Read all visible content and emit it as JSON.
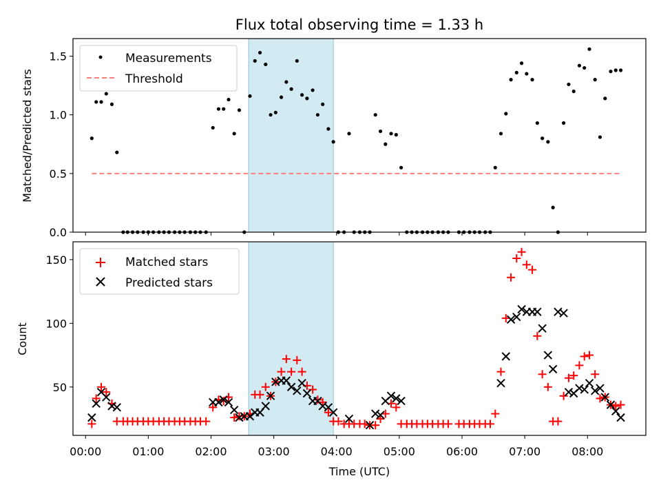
{
  "chart_data": [
    {
      "type": "scatter",
      "title": "Flux total observing time = 1.33 h",
      "xlabel": "",
      "ylabel": "Matched/Predicted stars",
      "xlim": [
        -0.2,
        8.93
      ],
      "ylim": [
        0,
        1.65
      ],
      "yticks": [
        0.0,
        0.5,
        1.0,
        1.5
      ],
      "ytick_labels": [
        "0.0",
        "0.5",
        "1.0",
        "1.5"
      ],
      "legend_position": "top-left",
      "highlight_span": {
        "x": [
          2.6,
          3.95
        ],
        "color": "#add8e6"
      },
      "series": [
        {
          "name": "Measurements",
          "marker": "dot",
          "color": "#000000",
          "x": [
            0.1,
            0.17,
            0.25,
            0.33,
            0.42,
            0.5,
            0.6,
            0.67,
            0.75,
            0.83,
            0.92,
            1.0,
            1.08,
            1.17,
            1.25,
            1.33,
            1.42,
            1.5,
            1.58,
            1.67,
            1.75,
            1.83,
            1.92,
            2.03,
            2.12,
            2.2,
            2.28,
            2.37,
            2.45,
            2.53,
            2.62,
            2.7,
            2.78,
            2.87,
            2.95,
            3.03,
            3.12,
            3.2,
            3.28,
            3.37,
            3.45,
            3.53,
            3.62,
            3.7,
            3.78,
            3.87,
            3.95,
            4.03,
            4.12,
            4.2,
            4.28,
            4.37,
            4.45,
            4.53,
            4.62,
            4.7,
            4.78,
            4.87,
            4.95,
            5.03,
            5.12,
            5.2,
            5.28,
            5.37,
            5.45,
            5.53,
            5.62,
            5.7,
            5.78,
            5.95,
            6.03,
            6.12,
            6.2,
            6.28,
            6.37,
            6.45,
            6.53,
            6.62,
            6.7,
            6.78,
            6.87,
            6.95,
            7.03,
            7.12,
            7.2,
            7.28,
            7.37,
            7.45,
            7.53,
            7.62,
            7.7,
            7.78,
            7.87,
            7.95,
            8.03,
            8.12,
            8.2,
            8.28,
            8.37,
            8.45,
            8.53
          ],
          "y": [
            0.8,
            1.11,
            1.11,
            1.18,
            1.09,
            0.68,
            0.0,
            0.0,
            0.0,
            0.0,
            0.0,
            0.0,
            0.0,
            0.0,
            0.0,
            0.0,
            0.0,
            0.0,
            0.0,
            0.0,
            0.0,
            0.0,
            0.0,
            0.89,
            1.05,
            1.05,
            1.13,
            0.84,
            1.04,
            0.0,
            1.16,
            1.46,
            1.53,
            1.43,
            1.0,
            1.02,
            1.15,
            1.28,
            1.22,
            1.46,
            1.17,
            1.14,
            1.21,
            1.0,
            1.09,
            0.88,
            0.77,
            0.0,
            0.0,
            0.84,
            0.0,
            0.0,
            0.0,
            0.0,
            1.0,
            0.86,
            0.75,
            0.84,
            0.83,
            0.55,
            0.0,
            0.0,
            0.0,
            0.0,
            0.0,
            0.0,
            0.0,
            0.0,
            0.0,
            0.0,
            0.0,
            0.0,
            0.0,
            0.0,
            0.0,
            0.0,
            0.55,
            0.84,
            1.01,
            1.3,
            1.36,
            1.44,
            1.35,
            1.3,
            0.93,
            0.8,
            0.77,
            0.21,
            0.0,
            0.93,
            1.26,
            1.2,
            1.42,
            1.4,
            1.56,
            1.3,
            0.81,
            1.14,
            1.37,
            1.38,
            1.38
          ]
        },
        {
          "name": "Threshold",
          "marker": "dashed-line",
          "color": "#ff7f7f",
          "x": [
            0.1,
            8.55
          ],
          "y": [
            0.5,
            0.5
          ]
        }
      ]
    },
    {
      "type": "scatter",
      "title": "",
      "xlabel": "Time (UTC)",
      "ylabel": "Count",
      "xlim": [
        -0.2,
        8.93
      ],
      "ylim": [
        12,
        164
      ],
      "yticks": [
        50,
        100,
        150
      ],
      "ytick_labels": [
        "50",
        "100",
        "150"
      ],
      "xticks": [
        0,
        1,
        2,
        3,
        4,
        5,
        6,
        7,
        8
      ],
      "xtick_labels": [
        "00:00",
        "01:00",
        "02:00",
        "03:00",
        "04:00",
        "05:00",
        "06:00",
        "07:00",
        "08:00"
      ],
      "legend_position": "top-left",
      "highlight_span": {
        "x": [
          2.6,
          3.95
        ],
        "color": "#add8e6"
      },
      "series": [
        {
          "name": "Matched stars",
          "marker": "plus",
          "color": "#ff0000",
          "x": [
            0.1,
            0.17,
            0.25,
            0.33,
            0.42,
            0.5,
            0.6,
            0.67,
            0.75,
            0.83,
            0.92,
            1.0,
            1.08,
            1.17,
            1.25,
            1.33,
            1.42,
            1.5,
            1.58,
            1.67,
            1.75,
            1.83,
            1.92,
            2.03,
            2.12,
            2.2,
            2.28,
            2.37,
            2.45,
            2.53,
            2.62,
            2.7,
            2.78,
            2.87,
            2.95,
            3.03,
            3.12,
            3.2,
            3.28,
            3.37,
            3.45,
            3.53,
            3.62,
            3.7,
            3.78,
            3.87,
            3.95,
            4.03,
            4.12,
            4.2,
            4.28,
            4.37,
            4.45,
            4.53,
            4.62,
            4.7,
            4.78,
            4.87,
            4.95,
            5.03,
            5.12,
            5.2,
            5.28,
            5.37,
            5.45,
            5.53,
            5.62,
            5.7,
            5.78,
            5.95,
            6.03,
            6.12,
            6.2,
            6.28,
            6.37,
            6.45,
            6.53,
            6.62,
            6.7,
            6.78,
            6.87,
            6.95,
            7.03,
            7.12,
            7.2,
            7.28,
            7.37,
            7.45,
            7.53,
            7.62,
            7.7,
            7.78,
            7.87,
            7.95,
            8.03,
            8.12,
            8.2,
            8.28,
            8.37,
            8.45,
            8.53
          ],
          "y": [
            21,
            41,
            50,
            46,
            37,
            23,
            23,
            23,
            23,
            23,
            23,
            23,
            23,
            23,
            23,
            23,
            23,
            23,
            23,
            23,
            23,
            23,
            23,
            34,
            40,
            39,
            42,
            26,
            27,
            27,
            29,
            44,
            44,
            50,
            43,
            54,
            62,
            72,
            62,
            71,
            62,
            51,
            48,
            40,
            38,
            30,
            23,
            23,
            21,
            21,
            21,
            21,
            21,
            20,
            20,
            25,
            29,
            37,
            34,
            21,
            21,
            21,
            21,
            21,
            21,
            21,
            21,
            21,
            21,
            21,
            21,
            21,
            21,
            21,
            21,
            21,
            29,
            62,
            104,
            136,
            151,
            156,
            146,
            142,
            90,
            60,
            50,
            23,
            23,
            43,
            57,
            59,
            67,
            74,
            75,
            60,
            41,
            42,
            36,
            35,
            36
          ]
        },
        {
          "name": "Predicted stars",
          "marker": "x",
          "color": "#000000",
          "x": [
            0.1,
            0.17,
            0.25,
            0.33,
            0.42,
            0.5,
            2.03,
            2.12,
            2.2,
            2.28,
            2.37,
            2.45,
            2.53,
            2.62,
            2.7,
            2.78,
            2.87,
            2.95,
            3.03,
            3.12,
            3.2,
            3.28,
            3.37,
            3.45,
            3.53,
            3.62,
            3.7,
            3.78,
            3.87,
            3.95,
            4.2,
            4.53,
            4.62,
            4.7,
            4.78,
            4.87,
            4.95,
            5.03,
            6.62,
            6.7,
            6.78,
            6.87,
            6.95,
            7.03,
            7.12,
            7.2,
            7.28,
            7.37,
            7.45,
            7.53,
            7.62,
            7.7,
            7.78,
            7.87,
            7.95,
            8.03,
            8.12,
            8.2,
            8.28,
            8.37,
            8.45,
            8.53
          ],
          "y": [
            26,
            37,
            46,
            42,
            35,
            34,
            38,
            38,
            40,
            38,
            32,
            26,
            27,
            27,
            30,
            30,
            35,
            43,
            54,
            55,
            55,
            50,
            47,
            53,
            45,
            39,
            39,
            35,
            34,
            30,
            25,
            20,
            29,
            28,
            39,
            43,
            41,
            39,
            53,
            74,
            103,
            105,
            111,
            109,
            109,
            109,
            96,
            75,
            64,
            109,
            108,
            46,
            45,
            49,
            48,
            53,
            47,
            49,
            42,
            36,
            31,
            26
          ]
        }
      ]
    }
  ]
}
